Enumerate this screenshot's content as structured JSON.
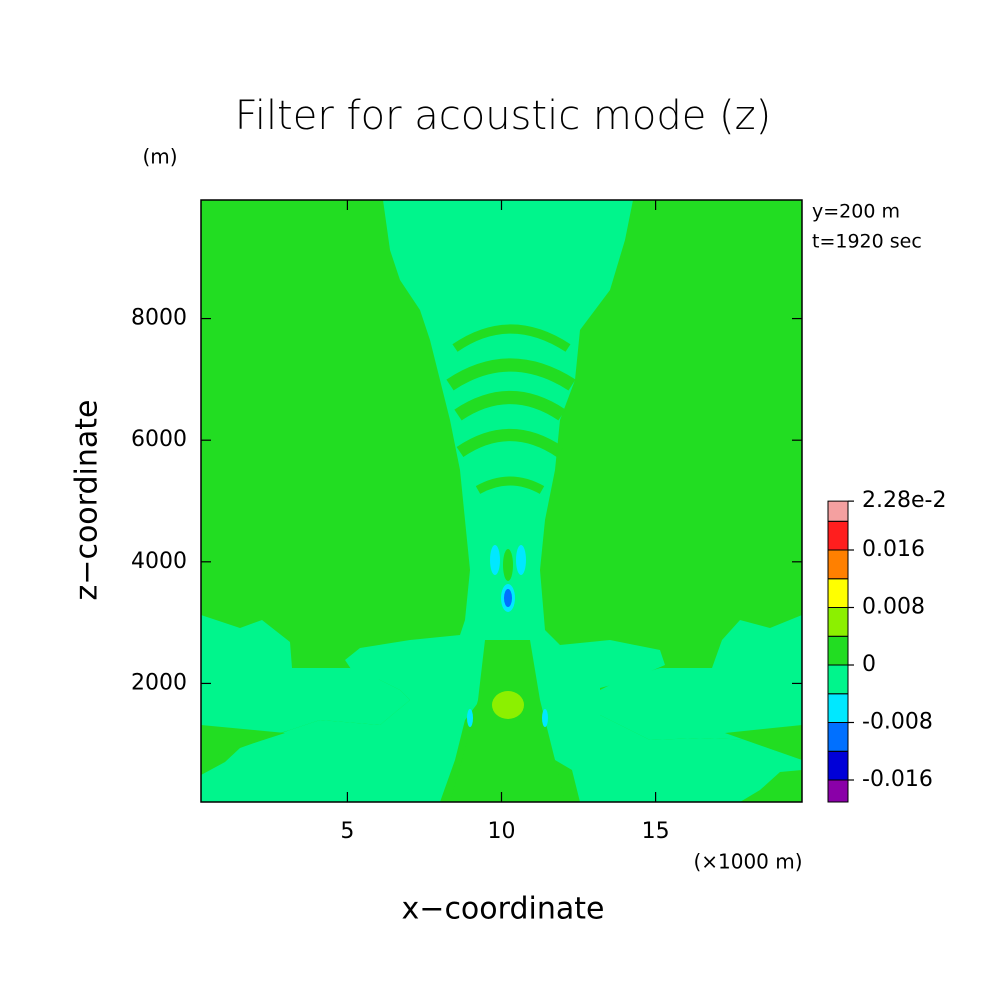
{
  "chart_data": {
    "type": "contour",
    "title": "Filter for acoustic mode (z)",
    "x_label": "x−coordinate",
    "y_label": "z−coordinate",
    "x_unit": "(×1000 m)",
    "y_unit": "(m)",
    "annotations": [
      "y=200 m",
      "t=1920 sec"
    ],
    "xlim": [
      0.25,
      19.75
    ],
    "xticks": [
      5,
      10,
      15
    ],
    "ylim": [
      50,
      9950
    ],
    "yticks": [
      2000,
      4000,
      6000,
      8000
    ],
    "colorbar": {
      "ticks": [
        -0.016,
        -0.008,
        0,
        0.008,
        0.016,
        {
          "value": 0.0228,
          "label": "2.28e-2"
        }
      ],
      "colors": [
        "#8a00a8",
        "#0000d8",
        "#0070ff",
        "#00e8ff",
        "#00f58c",
        "#22dd22",
        "#8cf000",
        "#ffff00",
        "#ff8000",
        "#ff1e1e",
        "#f4a0a0"
      ]
    }
  }
}
